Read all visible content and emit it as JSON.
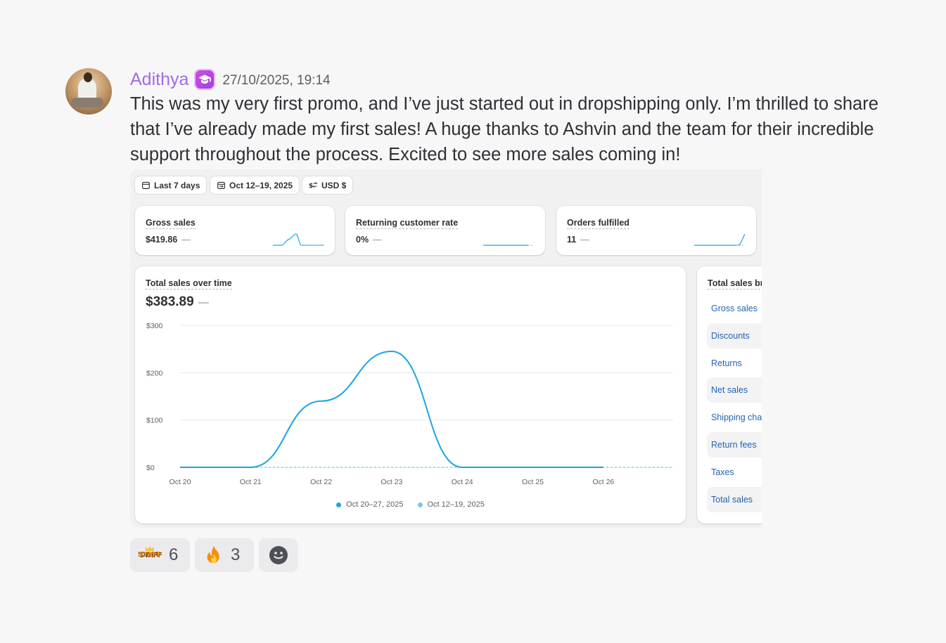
{
  "message": {
    "author": "Adithya",
    "author_color": "#a06be8",
    "role_badge_icon": "graduation-cap-icon",
    "timestamp": "27/10/2025, 19:14",
    "text": "This was my very first promo, and I’ve just started out in dropshipping only. I’m thrilled to share that I’ve already made my first sales! A huge thanks to Ashvin and the team for their incredible support throughout the process. Excited to see more sales coming in!"
  },
  "attachment": {
    "filters": {
      "period": "Last 7 days",
      "compare": "Oct 12–19, 2025",
      "currency": "USD $"
    },
    "metrics": [
      {
        "title": "Gross sales",
        "value": "$419.86",
        "change": "—"
      },
      {
        "title": "Returning customer rate",
        "value": "0%",
        "change": "—"
      },
      {
        "title": "Orders fulfilled",
        "value": "11",
        "change": "—"
      }
    ],
    "sales_chart": {
      "title": "Total sales over time",
      "total": "$383.89",
      "change": "—"
    },
    "breakdown": {
      "title": "Total sales br",
      "rows": [
        "Gross sales",
        "Discounts",
        "Returns",
        "Net sales",
        "Shipping cha",
        "Return fees",
        "Taxes",
        "Total sales"
      ]
    }
  },
  "chart_data": {
    "type": "line",
    "x": [
      "Oct 20",
      "Oct 21",
      "Oct 22",
      "Oct 23",
      "Oct 24",
      "Oct 25",
      "Oct 26"
    ],
    "ylim": [
      0,
      300
    ],
    "yticks": [
      "$300",
      "$200",
      "$100",
      "$0"
    ],
    "series": [
      {
        "name": "Oct 20–27, 2025",
        "color": "#1aa6e0",
        "values": [
          0,
          0,
          140,
          245,
          0,
          0,
          0
        ]
      },
      {
        "name": "Oct 12–19, 2025",
        "color": "#7cc4e8",
        "values": [
          0,
          0,
          0,
          0,
          0,
          0,
          0
        ]
      }
    ],
    "grid": true,
    "legend": "bottom-center"
  },
  "reactions": [
    {
      "emoji": "staff-emoji",
      "count": "6"
    },
    {
      "emoji": "fire-icon",
      "count": "3"
    },
    {
      "emoji": "add-reaction-icon",
      "count": ""
    }
  ]
}
